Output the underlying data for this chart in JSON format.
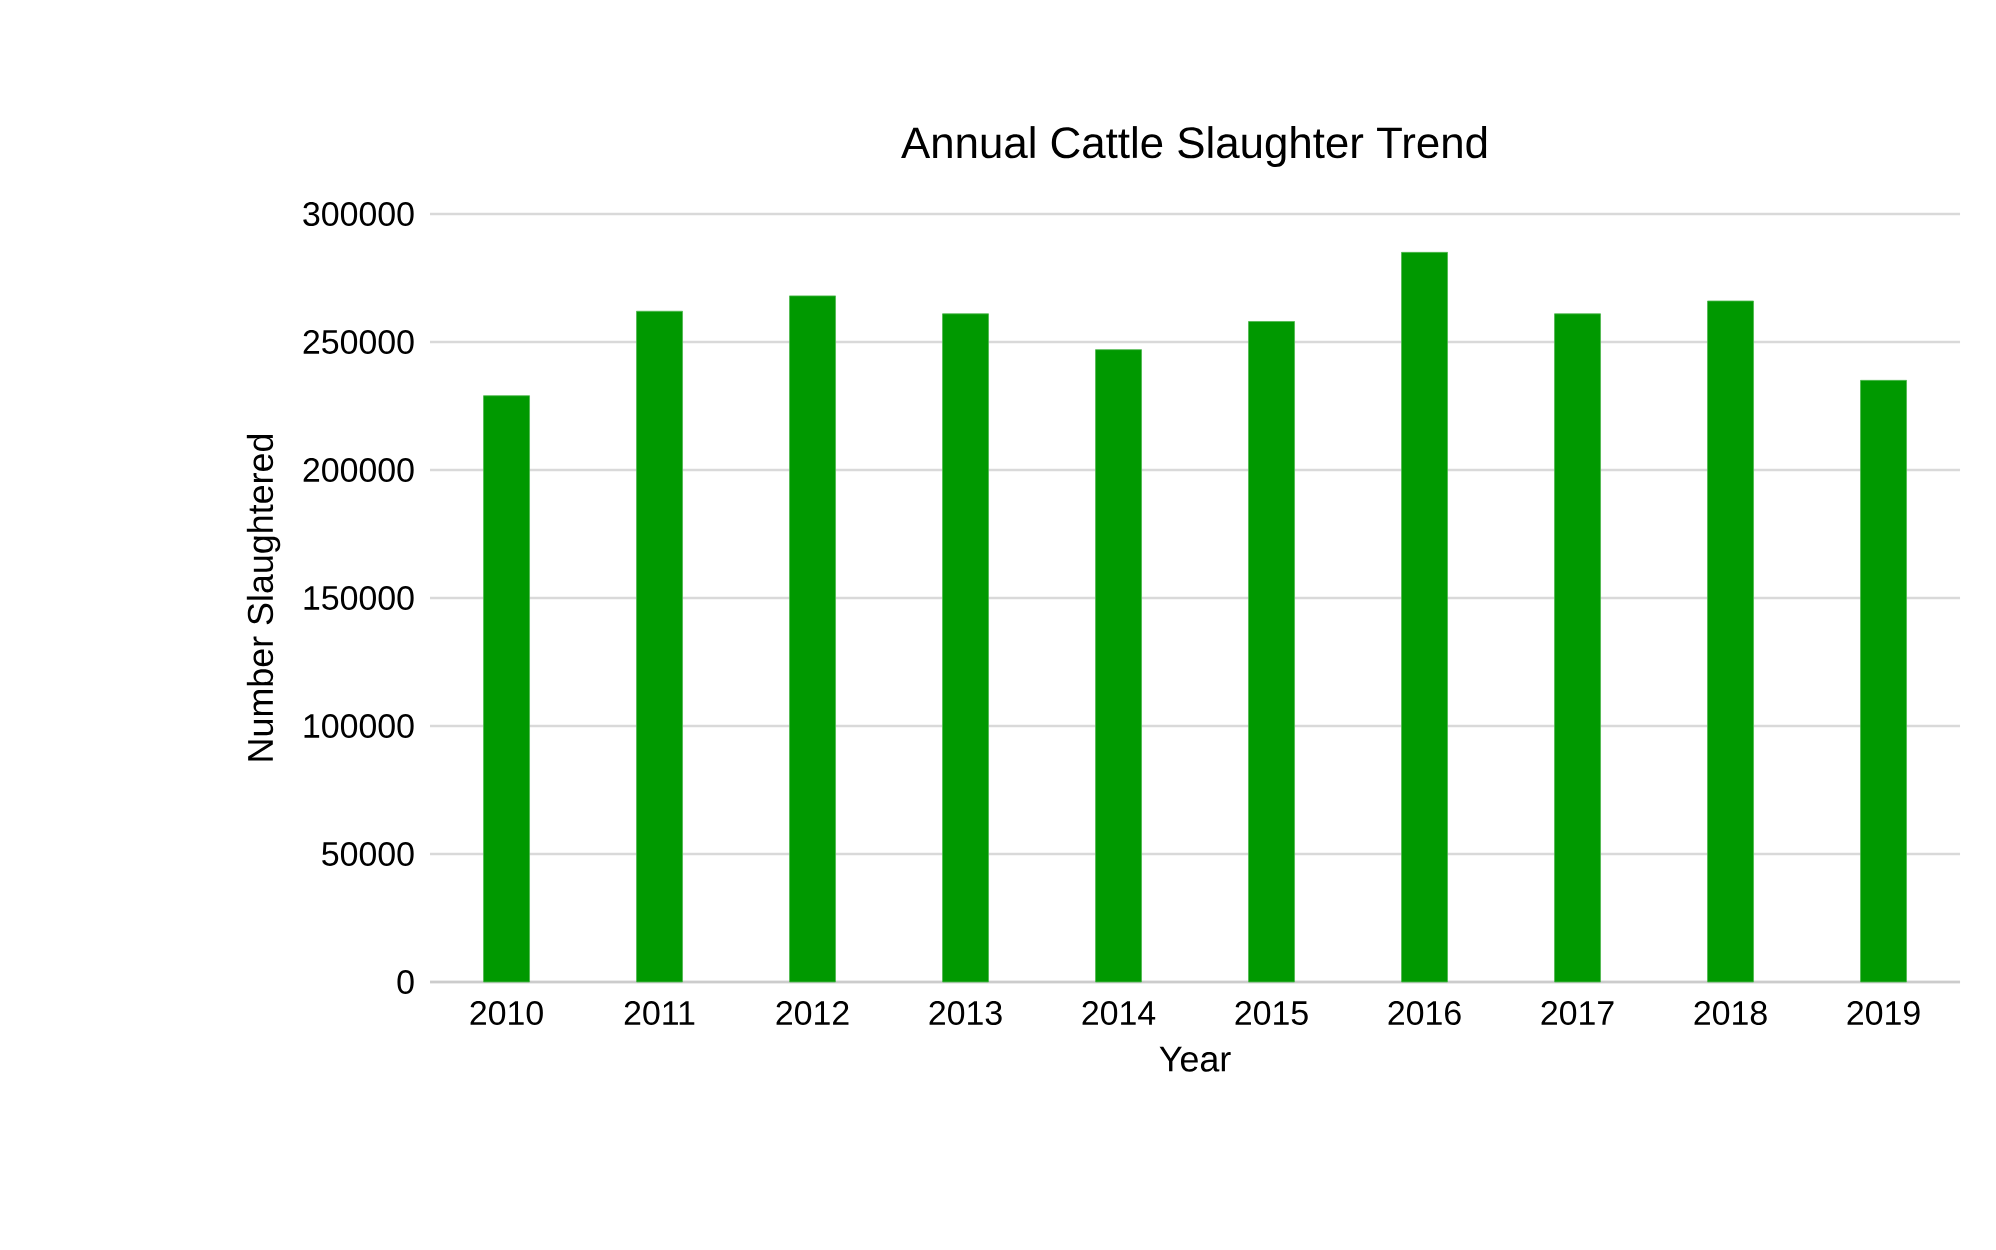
{
  "chart_data": {
    "type": "bar",
    "title": "Annual Cattle Slaughter Trend",
    "xlabel": "Year",
    "ylabel": "Number Slaughtered",
    "categories": [
      "2010",
      "2011",
      "2012",
      "2013",
      "2014",
      "2015",
      "2016",
      "2017",
      "2018",
      "2019"
    ],
    "values": [
      229000,
      262000,
      268000,
      261000,
      247000,
      258000,
      285000,
      261000,
      266000,
      235000
    ],
    "color": "#009900",
    "ylim": [
      0,
      300000
    ],
    "yticks": [
      0,
      50000,
      100000,
      150000,
      200000,
      250000,
      300000
    ],
    "grid": "y"
  }
}
